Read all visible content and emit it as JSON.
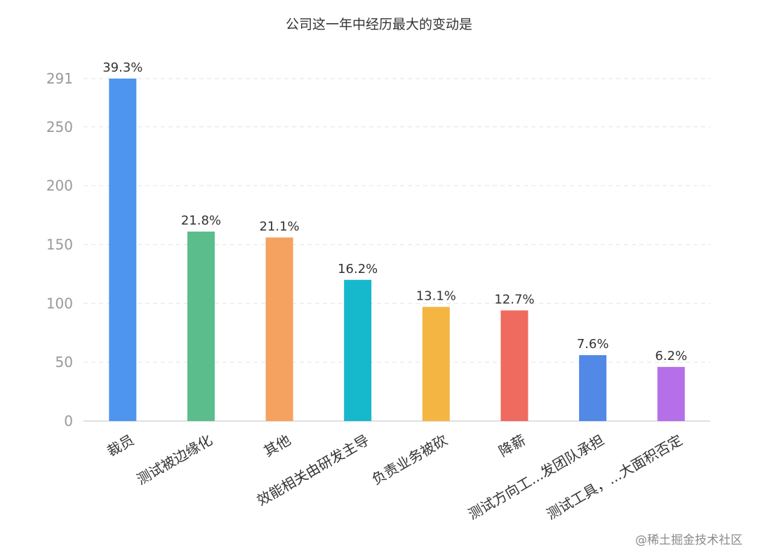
{
  "watermark": "@稀土掘金技术社区",
  "chart_data": {
    "type": "bar",
    "title": "公司这一年中经历最大的变动是",
    "xlabel": "",
    "ylabel": "",
    "ylim": [
      0,
      291
    ],
    "yticks": [
      0,
      50,
      100,
      150,
      200,
      250,
      291
    ],
    "grid": true,
    "legend": "none",
    "categories": [
      "裁员",
      "测试被边缘化",
      "其他",
      "效能相关由研发主导",
      "负责业务被砍",
      "降薪",
      "测试方向工...发团队承担",
      "测试工具，...大面积否定"
    ],
    "values": [
      291,
      161,
      156,
      120,
      97,
      94,
      56,
      46
    ],
    "data_labels": [
      "39.3%",
      "21.8%",
      "21.1%",
      "16.2%",
      "13.1%",
      "12.7%",
      "7.6%",
      "6.2%"
    ],
    "colors": [
      "#4e95ef",
      "#5bbd8b",
      "#f5a15f",
      "#16b8cc",
      "#f5b543",
      "#ef6a5f",
      "#5289e6",
      "#b46fe9"
    ]
  }
}
